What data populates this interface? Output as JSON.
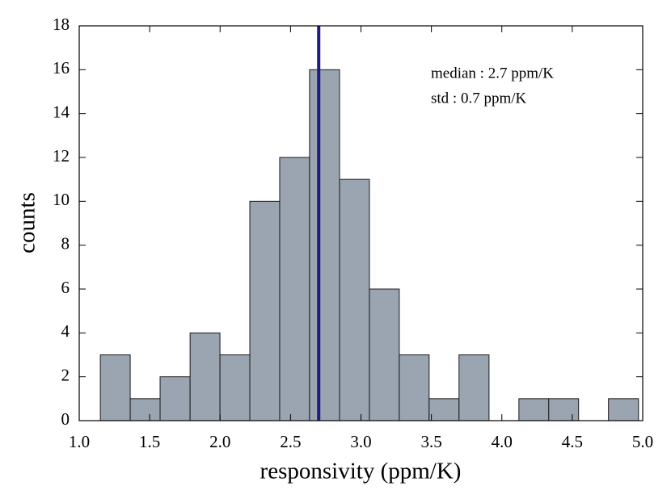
{
  "chart_data": {
    "type": "histogram",
    "xlabel": "responsivity (ppm/K)",
    "ylabel": "counts",
    "bins": [
      1.15,
      1.362,
      1.574,
      1.787,
      1.999,
      2.211,
      2.423,
      2.635,
      2.848,
      3.06,
      3.272,
      3.484,
      3.696,
      3.909,
      4.121,
      4.333,
      4.545,
      4.757,
      4.97
    ],
    "counts": [
      3,
      1,
      2,
      4,
      3,
      10,
      12,
      16,
      11,
      6,
      3,
      1,
      3,
      0,
      1,
      1,
      0,
      1
    ],
    "color": "#9aa5b1",
    "edgecolor": "#1a1a1a",
    "median_line": {
      "value": 2.7,
      "color": "#1c1c84"
    },
    "annotations": [
      "median : 2.7 ppm/K",
      "std : 0.7 ppm/K"
    ],
    "xlim": [
      1.0,
      5.0
    ],
    "xticks": [
      {
        "value": 1.0,
        "label": "1.0"
      },
      {
        "value": 1.5,
        "label": "1.5"
      },
      {
        "value": 2.0,
        "label": "2.0"
      },
      {
        "value": 2.5,
        "label": "2.5"
      },
      {
        "value": 3.0,
        "label": "3.0"
      },
      {
        "value": 3.5,
        "label": "3.5"
      },
      {
        "value": 4.0,
        "label": "4.0"
      },
      {
        "value": 4.5,
        "label": "4.5"
      },
      {
        "value": 5.0,
        "label": "5.0"
      }
    ],
    "ylim": [
      0,
      18
    ],
    "yticks": [
      0,
      2,
      4,
      6,
      8,
      10,
      12,
      14,
      16,
      18
    ]
  }
}
